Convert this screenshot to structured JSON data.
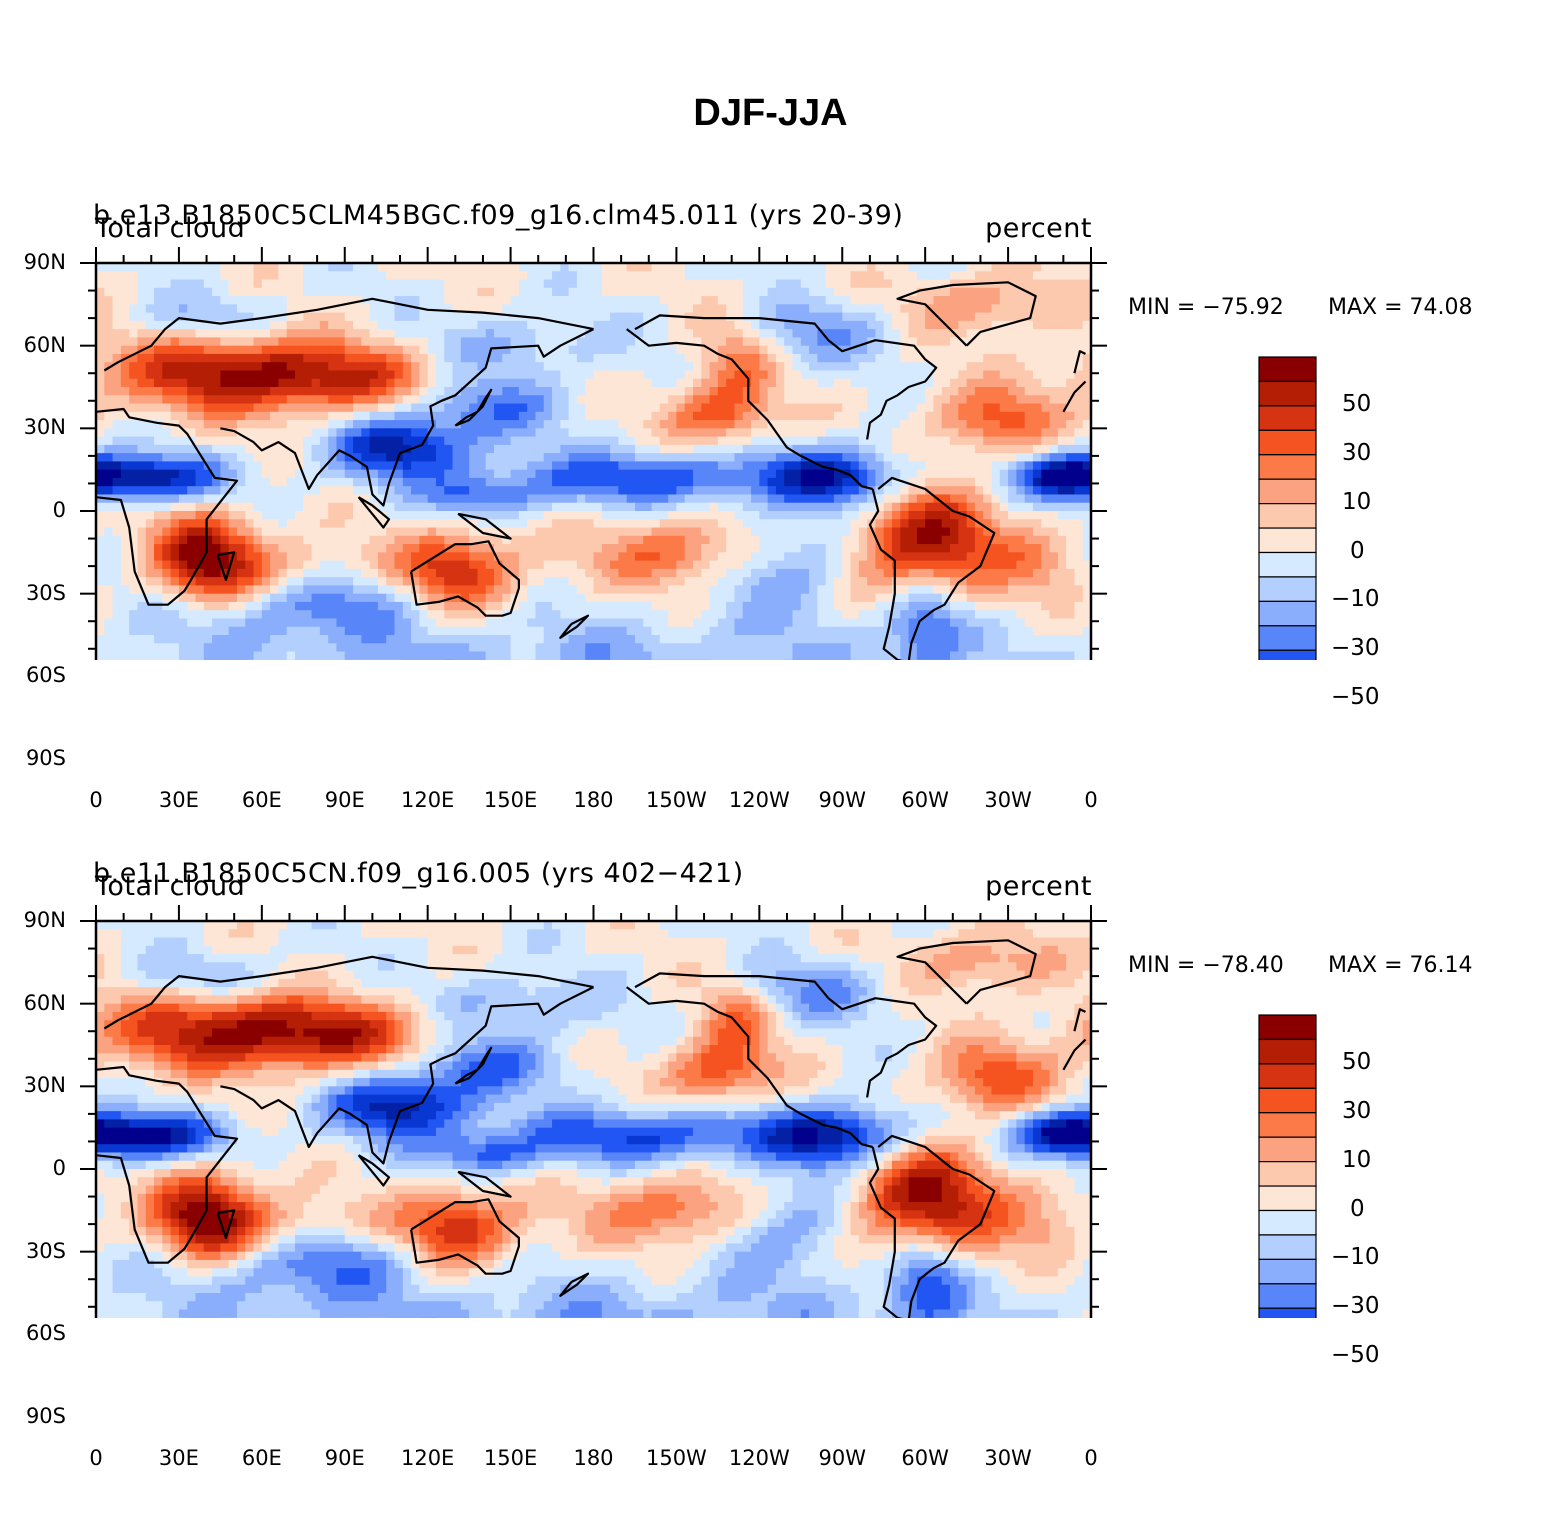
{
  "title": "DJF-JJA",
  "panels": [
    {
      "variable": "Total cloud",
      "case": "b.e13.B1850C5CLM45BGC.f09_g16.clm45.011 (yrs 20-39)",
      "units": "percent",
      "min_label": "MIN = −75.92",
      "max_label": "MAX =   74.08",
      "min": -75.92,
      "max": 74.08
    },
    {
      "variable": "Total cloud",
      "case": "b.e11.B1850C5CN.f09_g16.005 (yrs 402−421)",
      "units": "percent",
      "min_label": "MIN = −78.40",
      "max_label": "MAX =   76.14",
      "min": -78.4,
      "max": 76.14
    }
  ],
  "lat_ticks": [
    "90N",
    "60N",
    "30N",
    "0",
    "30S",
    "60S",
    "90S"
  ],
  "lon_ticks": [
    "0",
    "30E",
    "60E",
    "90E",
    "120E",
    "150E",
    "180",
    "150W",
    "120W",
    "90W",
    "60W",
    "30W",
    "0"
  ],
  "colorbar": {
    "colors": [
      "#8a0000",
      "#b31e05",
      "#d63312",
      "#f5531f",
      "#fb7a47",
      "#fba280",
      "#fdc9ae",
      "#fde6d5",
      "#d6eaff",
      "#b3cffe",
      "#8aaefc",
      "#5886f8",
      "#2156f3",
      "#0837d2",
      "#0421a6",
      "#00008c"
    ],
    "labels": [
      "50",
      "30",
      "10",
      "0",
      "−10",
      "−30",
      "−50"
    ]
  }
}
